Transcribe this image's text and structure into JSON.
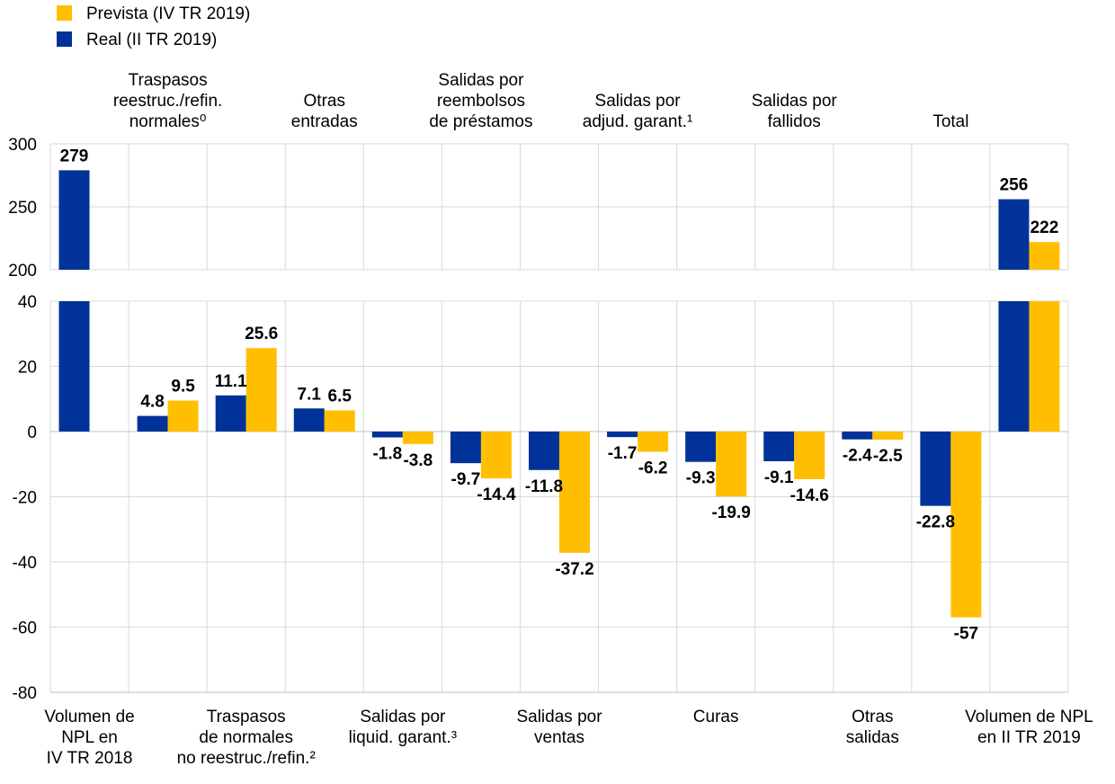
{
  "chart_data": {
    "type": "bar",
    "legend": {
      "position": "top-left",
      "entries": [
        {
          "name": "Prevista (IV TR 2019)",
          "color": "#FFBF00"
        },
        {
          "name": "Real (II TR 2019)",
          "color": "#003299"
        }
      ]
    },
    "categories": [
      {
        "label": [
          "Volumen de",
          "NPL en",
          "IV TR 2018"
        ],
        "row": "bottom"
      },
      {
        "label": [
          "Traspasos",
          "reestruc./refin.",
          "normales⁰"
        ],
        "row": "top"
      },
      {
        "label": [
          "Traspasos",
          "de normales",
          "no reestruc./refin.²"
        ],
        "row": "bottom"
      },
      {
        "label": [
          "Otras",
          "entradas"
        ],
        "row": "top"
      },
      {
        "label": [
          "Salidas por",
          "liquid. garant.³"
        ],
        "row": "bottom"
      },
      {
        "label": [
          "Salidas por",
          "reembolsos",
          "de préstamos"
        ],
        "row": "top"
      },
      {
        "label": [
          "Salidas por",
          "ventas"
        ],
        "row": "bottom"
      },
      {
        "label": [
          "Salidas por",
          "adjud. garant.¹"
        ],
        "row": "top"
      },
      {
        "label": [
          "Curas"
        ],
        "row": "bottom"
      },
      {
        "label": [
          "Salidas por",
          "fallidos"
        ],
        "row": "top"
      },
      {
        "label": [
          "Otras",
          "salidas"
        ],
        "row": "bottom"
      },
      {
        "label": [
          "Total"
        ],
        "row": "top"
      },
      {
        "label": [
          "Volumen de NPL",
          "en II TR 2019"
        ],
        "row": "bottom"
      }
    ],
    "series": [
      {
        "name": "Real (II TR 2019)",
        "color": "#003299",
        "values": [
          279,
          4.8,
          11.1,
          7.1,
          -1.8,
          -9.7,
          -11.8,
          -1.7,
          -9.3,
          -9.1,
          -2.4,
          -22.8,
          256
        ],
        "labels": [
          "279",
          "4.8",
          "11.1",
          "7.1",
          "-1.8",
          "-9.7",
          "-11.8",
          "-1.7",
          "-9.3",
          "-9.1",
          "-2.4",
          "-22.8",
          "256"
        ]
      },
      {
        "name": "Prevista (IV TR 2019)",
        "color": "#FFBF00",
        "values": [
          null,
          9.5,
          25.6,
          6.5,
          -3.8,
          -14.4,
          -37.2,
          -6.2,
          -19.9,
          -14.6,
          -2.5,
          -57,
          222
        ],
        "labels": [
          "",
          "9.5",
          "25.6",
          "6.5",
          "-3.8",
          "-14.4",
          "-37.2",
          "-6.2",
          "-19.9",
          "-14.6",
          "-2.5",
          "-57",
          "222"
        ]
      }
    ],
    "upper_panel": {
      "ylim": [
        200,
        300
      ],
      "ticks": [
        "300",
        "250",
        "200"
      ]
    },
    "lower_panel": {
      "ylim": [
        -80,
        40
      ],
      "ticks": [
        "40",
        "20",
        "0",
        "-20",
        "-40",
        "-60",
        "-80"
      ]
    },
    "grid": true
  }
}
